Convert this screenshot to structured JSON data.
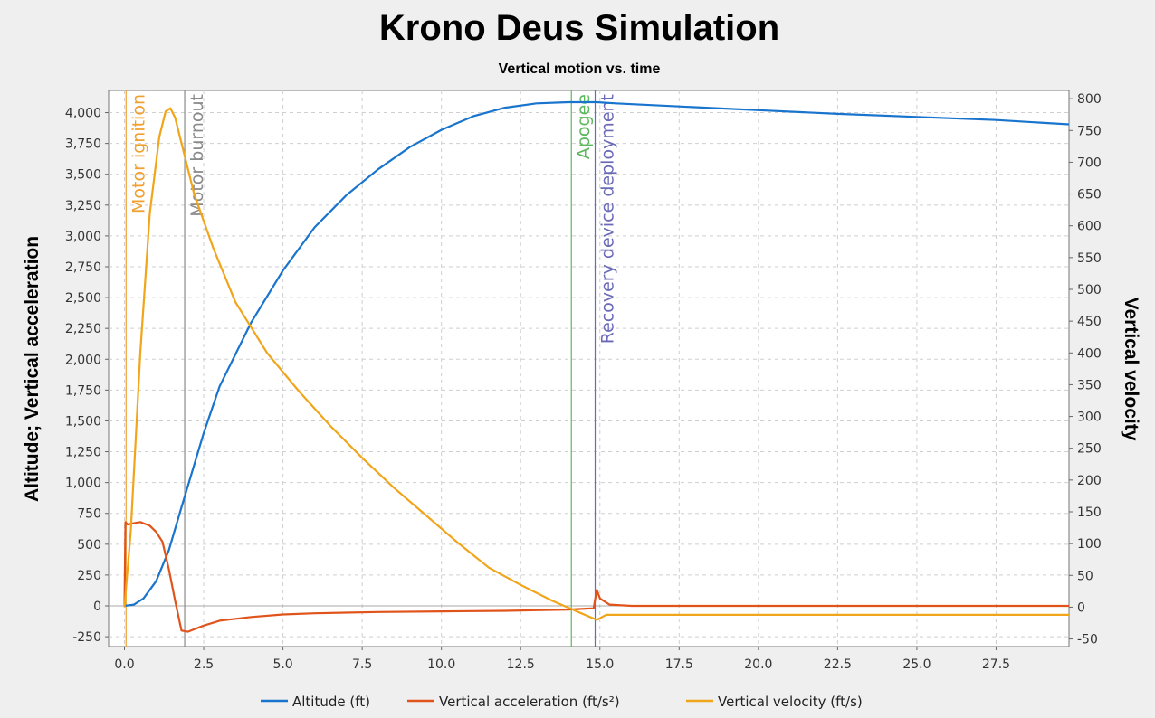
{
  "chart_data": {
    "type": "line",
    "title": "Krono Deus Simulation",
    "subtitle": "Vertical motion vs. time",
    "ylabel_left": "Altitude; Vertical acceleration",
    "ylabel_right": "Vertical velocity",
    "xlim": [
      -0.5,
      29.8
    ],
    "ylim_left": [
      -330,
      4180
    ],
    "ylim_right": [
      -62,
      813
    ],
    "x_ticks": [
      0,
      2.5,
      5,
      7.5,
      10,
      12.5,
      15,
      17.5,
      20,
      22.5,
      25,
      27.5
    ],
    "x_tick_labels": [
      "0.0",
      "2.5",
      "5.0",
      "7.5",
      "10.0",
      "12.5",
      "15.0",
      "17.5",
      "20.0",
      "22.5",
      "25.0",
      "27.5"
    ],
    "y_left_ticks": [
      -250,
      0,
      250,
      500,
      750,
      1000,
      1250,
      1500,
      1750,
      2000,
      2250,
      2500,
      2750,
      3000,
      3250,
      3500,
      3750,
      4000
    ],
    "y_left_tick_labels": [
      "-250",
      "0",
      "250",
      "500",
      "750",
      "1,000",
      "1,250",
      "1,500",
      "1,750",
      "2,000",
      "2,250",
      "2,500",
      "2,750",
      "3,000",
      "3,250",
      "3,500",
      "3,750",
      "4,000"
    ],
    "y_right_ticks": [
      -50,
      0,
      50,
      100,
      150,
      200,
      250,
      300,
      350,
      400,
      450,
      500,
      550,
      600,
      650,
      700,
      750,
      800
    ],
    "y_right_tick_labels": [
      "-50",
      "0",
      "50",
      "100",
      "150",
      "200",
      "250",
      "300",
      "350",
      "400",
      "450",
      "500",
      "550",
      "600",
      "650",
      "700",
      "750",
      "800"
    ],
    "grid": true,
    "legend_position": "bottom",
    "series": [
      {
        "name": "Altitude (ft)",
        "axis": "left",
        "color": "#1874cd",
        "x": [
          0,
          0.3,
          0.6,
          1.0,
          1.4,
          1.8,
          2.5,
          3.0,
          4.0,
          5.0,
          6.0,
          7.0,
          8.0,
          9.0,
          10.0,
          11.0,
          12.0,
          13.0,
          14.0,
          14.9,
          15.5,
          17.5,
          20.0,
          22.5,
          25.0,
          27.5,
          29.8
        ],
        "y": [
          0,
          10,
          60,
          200,
          450,
          800,
          1400,
          1780,
          2300,
          2720,
          3070,
          3330,
          3540,
          3720,
          3860,
          3970,
          4040,
          4075,
          4085,
          4085,
          4075,
          4050,
          4020,
          3990,
          3965,
          3940,
          3905
        ]
      },
      {
        "name": "Vertical acceleration (ft/s²)",
        "axis": "left",
        "color": "#e0541c",
        "x": [
          0,
          0.03,
          0.1,
          0.3,
          0.5,
          0.8,
          1.0,
          1.2,
          1.4,
          1.6,
          1.8,
          2.0,
          2.5,
          3.0,
          4.0,
          5.0,
          6.0,
          8.0,
          10.0,
          12.0,
          13.0,
          14.0,
          14.8,
          14.9,
          15.0,
          15.3,
          16.0,
          20.0,
          25.0,
          29.8
        ],
        "y": [
          0,
          680,
          660,
          670,
          680,
          650,
          600,
          520,
          300,
          40,
          -200,
          -210,
          -160,
          -120,
          -90,
          -70,
          -60,
          -50,
          -45,
          -40,
          -35,
          -30,
          -20,
          130,
          60,
          10,
          0,
          0,
          0,
          0
        ]
      },
      {
        "name": "Vertical velocity (ft/s)",
        "axis": "right",
        "color": "#f0a51a",
        "x": [
          0,
          0.2,
          0.5,
          0.8,
          1.1,
          1.3,
          1.45,
          1.6,
          1.8,
          2.2,
          2.8,
          3.5,
          4.5,
          5.5,
          6.5,
          7.5,
          8.5,
          9.5,
          10.5,
          11.5,
          12.5,
          13.5,
          14.1,
          14.9,
          15.2,
          16.0,
          20.0,
          25.0,
          29.8
        ],
        "y": [
          0,
          120,
          400,
          620,
          740,
          780,
          785,
          770,
          730,
          650,
          565,
          480,
          400,
          340,
          285,
          235,
          188,
          145,
          102,
          62,
          35,
          10,
          -3,
          -20,
          -12,
          -12,
          -12,
          -12,
          -12
        ]
      }
    ],
    "events": [
      {
        "label": "Motor ignition",
        "x": 0.05,
        "color": "#f0a030"
      },
      {
        "label": "Motor burnout",
        "x": 1.9,
        "color": "#8a8a8a"
      },
      {
        "label": "Apogee",
        "x": 14.1,
        "color": "#5cb85c"
      },
      {
        "label": "Recovery device deployment",
        "x": 14.85,
        "color": "#6a6ab8"
      }
    ]
  }
}
